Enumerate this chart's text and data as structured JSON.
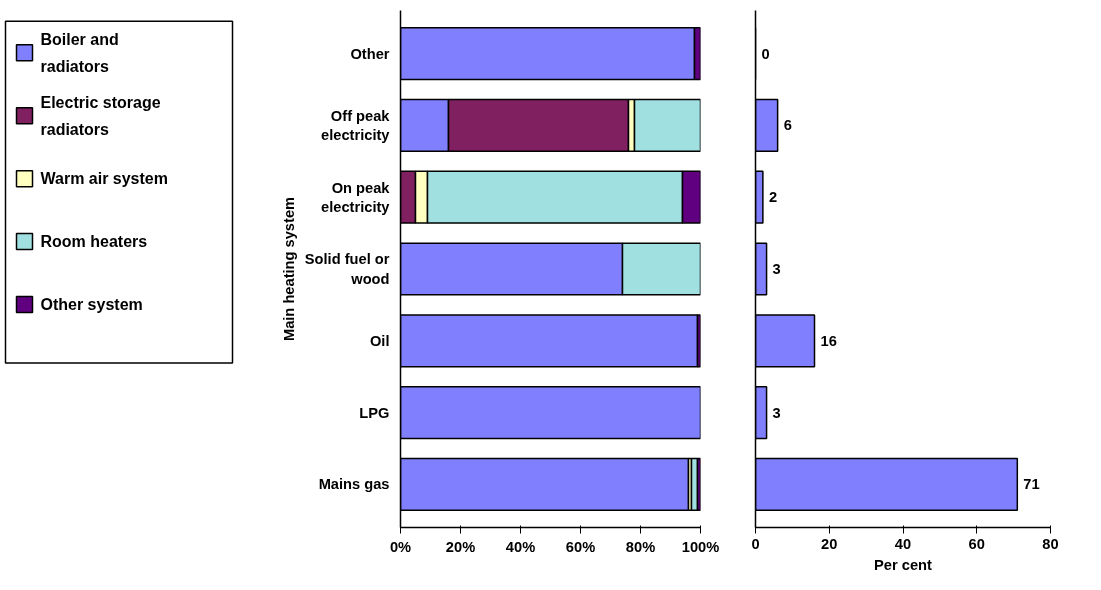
{
  "chart_data": [
    {
      "type": "bar",
      "orientation": "horizontal",
      "stacked": true,
      "categories": [
        "Other",
        "Off peak electricity",
        "On peak electricity",
        "Solid fuel or wood",
        "Oil",
        "LPG",
        "Mains gas"
      ],
      "series": [
        {
          "name": "Boiler and radiators",
          "color": "#8080ff",
          "values": [
            98,
            16,
            0,
            74,
            99,
            100,
            96
          ]
        },
        {
          "name": "Electric storage radiators",
          "color": "#802060",
          "values": [
            0,
            60,
            5,
            0,
            0,
            0,
            0
          ]
        },
        {
          "name": "Warm air system",
          "color": "#ffffc0",
          "values": [
            0,
            2,
            4,
            0,
            0,
            0,
            1
          ]
        },
        {
          "name": "Room heaters",
          "color": "#a0e0e0",
          "values": [
            0,
            22,
            85,
            26,
            0,
            0,
            2
          ]
        },
        {
          "name": "Other system",
          "color": "#600080",
          "values": [
            2,
            0,
            6,
            0,
            1,
            0,
            1
          ]
        }
      ],
      "xlim": [
        0,
        100
      ],
      "xticks": [
        {
          "value": 0,
          "label": "0%"
        },
        {
          "value": 20,
          "label": "20%"
        },
        {
          "value": 40,
          "label": "40%"
        },
        {
          "value": 60,
          "label": "60%"
        },
        {
          "value": 80,
          "label": "80%"
        },
        {
          "value": 100,
          "label": "100%"
        }
      ],
      "ylabel": "Main heating system",
      "legend": "left"
    },
    {
      "type": "bar",
      "orientation": "horizontal",
      "categories": [
        "Other",
        "Off peak electricity",
        "On peak electricity",
        "Solid fuel or wood",
        "Oil",
        "LPG",
        "Mains gas"
      ],
      "values": [
        0,
        6,
        2,
        3,
        16,
        3,
        71
      ],
      "color": "#8080ff",
      "xlim": [
        0,
        80
      ],
      "xticks": [
        0,
        20,
        40,
        60,
        80
      ],
      "xlabel": "Per cent",
      "data_labels": true,
      "tick_labels": "x"
    }
  ]
}
